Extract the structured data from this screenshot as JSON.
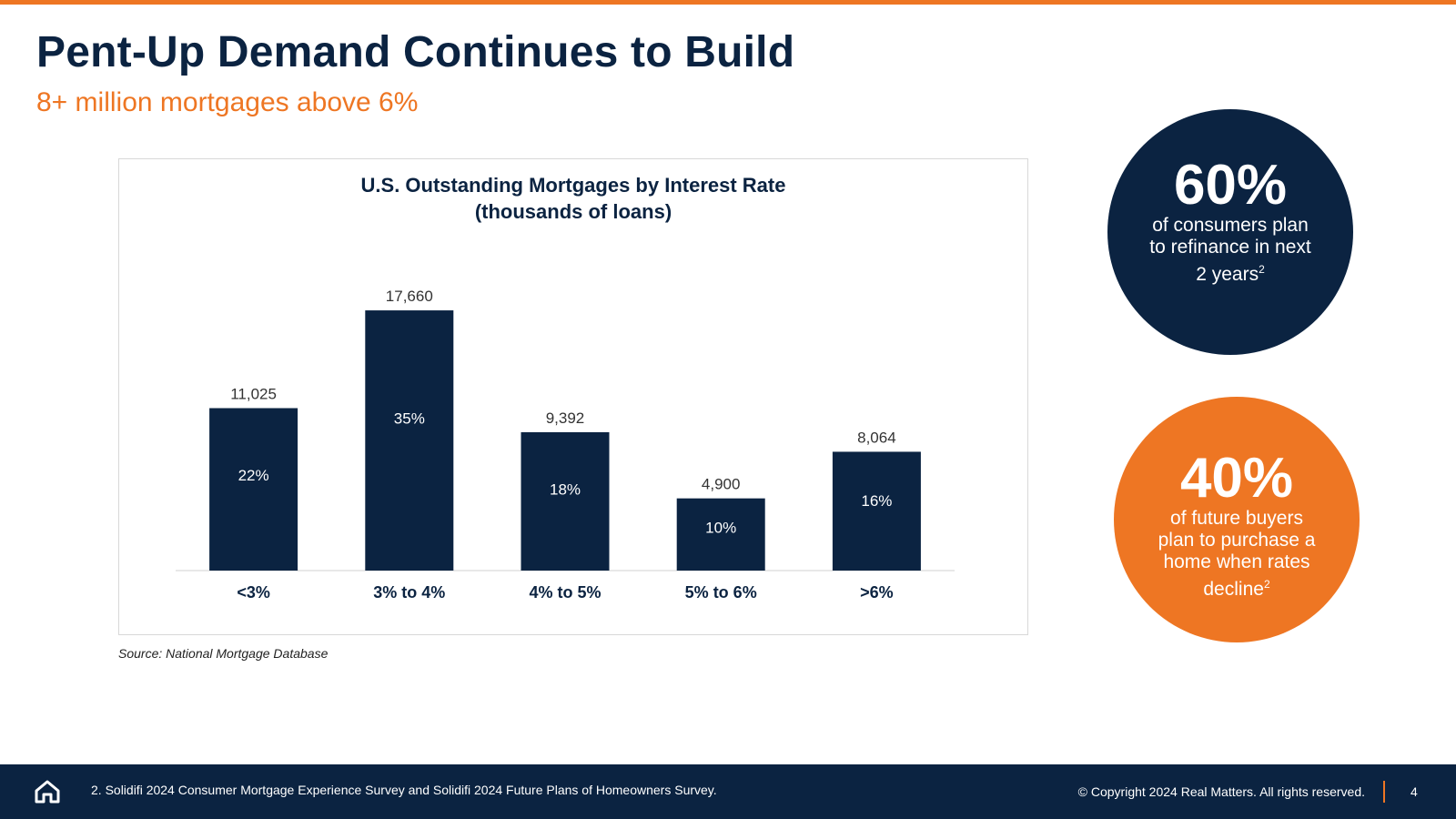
{
  "slide": {
    "title": "Pent-Up Demand Continues to Build",
    "subtitle": "8+ million mortgages above 6%",
    "source": "Source: National Mortgage Database"
  },
  "chart_data": {
    "type": "bar",
    "title_line1": "U.S. Outstanding Mortgages by Interest Rate",
    "title_line2": "(thousands of loans)",
    "categories": [
      "<3%",
      "3% to 4%",
      "4% to 5%",
      "5% to 6%",
      ">6%"
    ],
    "values": [
      11025,
      17660,
      9392,
      4900,
      8064
    ],
    "value_labels": [
      "11,025",
      "17,660",
      "9,392",
      "4,900",
      "8,064"
    ],
    "share_labels": [
      "22%",
      "35%",
      "18%",
      "10%",
      "16%"
    ],
    "ylim": [
      0,
      21000
    ],
    "xlabel": "",
    "ylabel": "",
    "grid": false,
    "bar_color": "#0B2341"
  },
  "stats": [
    {
      "value": "60%",
      "text": "of consumers plan to refinance in next 2 years",
      "sup": "2",
      "color": "#0B2341"
    },
    {
      "value": "40%",
      "text": "of future buyers plan to purchase a home when rates decline",
      "sup": "2",
      "color": "#EE7623"
    }
  ],
  "footer": {
    "footnote": "2. Solidifi 2024 Consumer Mortgage Experience Survey and Solidifi 2024 Future Plans of Homeowners Survey.",
    "copyright": "© Copyright 2024 Real Matters. All rights reserved.",
    "page_number": "4",
    "icon": "home-icon"
  },
  "colors": {
    "navy": "#0B2341",
    "orange": "#EE7623"
  }
}
